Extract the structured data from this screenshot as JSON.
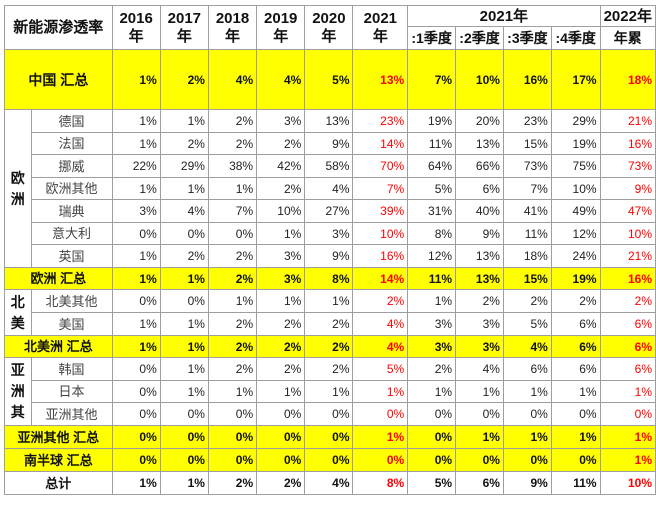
{
  "header": {
    "title": "新能源渗透率",
    "years": [
      "2016\n年",
      "2017\n年",
      "2018\n年",
      "2019\n年",
      "2020\n年",
      "2021\n年"
    ],
    "quarter_group": "2021年",
    "quarters": [
      ":1季度",
      ":2季度",
      ":3季度",
      ":4季度"
    ],
    "ytd_top": "2022年",
    "ytd_bottom": "年累"
  },
  "rows": {
    "china": {
      "label": "中国 汇总",
      "values": [
        "1%",
        "2%",
        "4%",
        "4%",
        "5%",
        "13%",
        "7%",
        "10%",
        "16%",
        "17%",
        "18%"
      ]
    },
    "europe": {
      "region": "欧\n洲",
      "countries": [
        {
          "name": "德国",
          "values": [
            "1%",
            "1%",
            "2%",
            "3%",
            "13%",
            "23%",
            "19%",
            "20%",
            "23%",
            "29%",
            "21%"
          ]
        },
        {
          "name": "法国",
          "values": [
            "1%",
            "2%",
            "2%",
            "2%",
            "9%",
            "14%",
            "11%",
            "13%",
            "15%",
            "19%",
            "16%"
          ]
        },
        {
          "name": "挪威",
          "values": [
            "22%",
            "29%",
            "38%",
            "42%",
            "58%",
            "70%",
            "64%",
            "66%",
            "73%",
            "75%",
            "73%"
          ]
        },
        {
          "name": "欧洲其他",
          "values": [
            "1%",
            "1%",
            "1%",
            "2%",
            "4%",
            "7%",
            "5%",
            "6%",
            "7%",
            "10%",
            "9%"
          ]
        },
        {
          "name": "瑞典",
          "values": [
            "3%",
            "4%",
            "7%",
            "10%",
            "27%",
            "39%",
            "31%",
            "40%",
            "41%",
            "49%",
            "47%"
          ]
        },
        {
          "name": "意大利",
          "values": [
            "0%",
            "0%",
            "0%",
            "1%",
            "3%",
            "10%",
            "8%",
            "9%",
            "11%",
            "12%",
            "10%"
          ]
        },
        {
          "name": "英国",
          "values": [
            "1%",
            "2%",
            "2%",
            "3%",
            "9%",
            "16%",
            "12%",
            "13%",
            "18%",
            "24%",
            "21%"
          ]
        }
      ],
      "sum": {
        "label": "欧洲 汇总",
        "values": [
          "1%",
          "1%",
          "2%",
          "3%",
          "8%",
          "14%",
          "11%",
          "13%",
          "15%",
          "19%",
          "16%"
        ]
      }
    },
    "north_america": {
      "region": "北\n美",
      "countries": [
        {
          "name": "北美其他",
          "values": [
            "0%",
            "0%",
            "1%",
            "1%",
            "1%",
            "2%",
            "1%",
            "2%",
            "2%",
            "2%",
            "2%"
          ]
        },
        {
          "name": "美国",
          "values": [
            "1%",
            "1%",
            "2%",
            "2%",
            "2%",
            "4%",
            "3%",
            "3%",
            "5%",
            "6%",
            "6%"
          ]
        }
      ],
      "sum": {
        "label": "北美洲 汇总",
        "values": [
          "1%",
          "1%",
          "2%",
          "2%",
          "2%",
          "4%",
          "3%",
          "3%",
          "4%",
          "6%",
          "6%"
        ]
      }
    },
    "asia": {
      "region": "亚\n洲\n其",
      "countries": [
        {
          "name": "韩国",
          "values": [
            "0%",
            "1%",
            "2%",
            "2%",
            "2%",
            "5%",
            "2%",
            "4%",
            "6%",
            "6%",
            "6%"
          ]
        },
        {
          "name": "日本",
          "values": [
            "0%",
            "1%",
            "1%",
            "1%",
            "1%",
            "1%",
            "1%",
            "1%",
            "1%",
            "1%",
            "1%"
          ]
        },
        {
          "name": "亚洲其他",
          "values": [
            "0%",
            "0%",
            "0%",
            "0%",
            "0%",
            "0%",
            "0%",
            "0%",
            "0%",
            "0%",
            "0%"
          ]
        }
      ],
      "sum": {
        "label": "亚洲其他 汇总",
        "values": [
          "0%",
          "0%",
          "0%",
          "0%",
          "0%",
          "1%",
          "0%",
          "1%",
          "1%",
          "1%",
          "1%"
        ]
      }
    },
    "southern": {
      "label": "南半球 汇总",
      "values": [
        "0%",
        "0%",
        "0%",
        "0%",
        "0%",
        "0%",
        "0%",
        "0%",
        "0%",
        "0%",
        "1%"
      ]
    },
    "total": {
      "label": "总计",
      "values": [
        "1%",
        "1%",
        "2%",
        "2%",
        "4%",
        "8%",
        "5%",
        "6%",
        "9%",
        "11%",
        "10%"
      ]
    }
  },
  "colors": {
    "highlight": "#ffff00",
    "accent_red": "#ff0000",
    "grid": "#9e9e9e"
  }
}
